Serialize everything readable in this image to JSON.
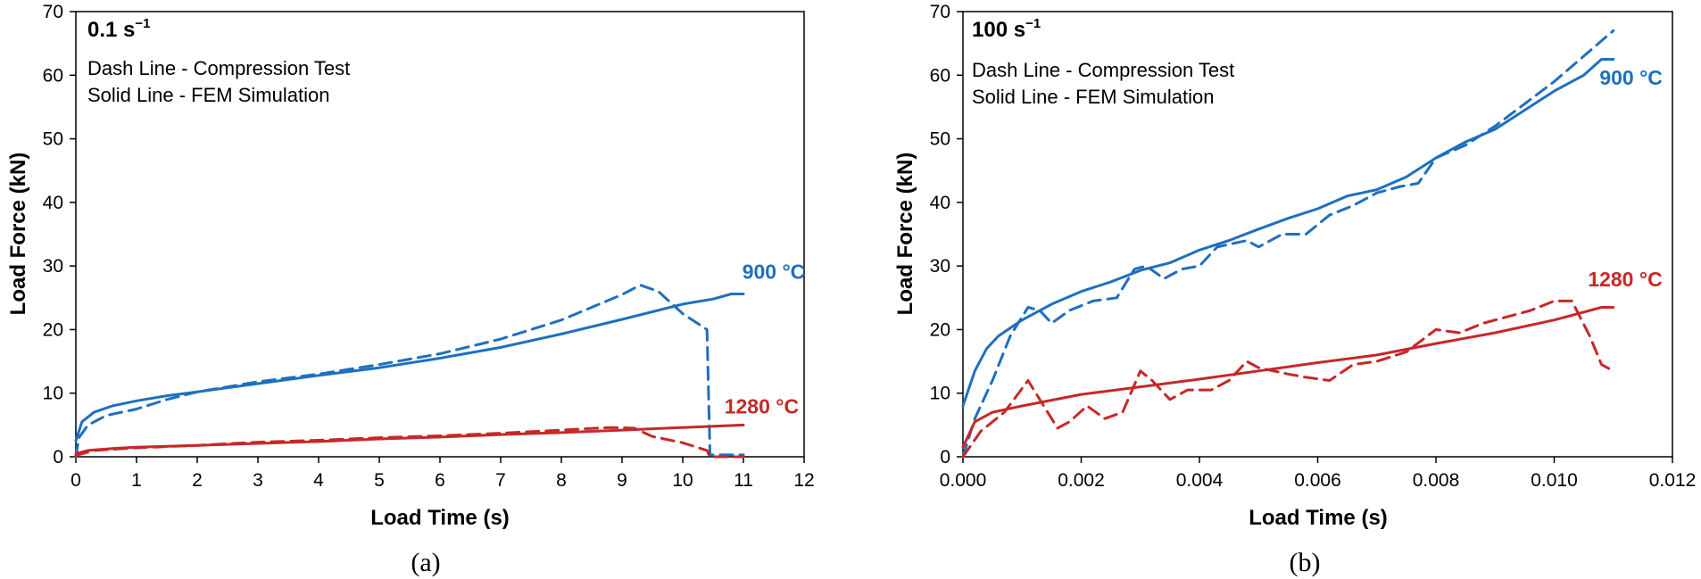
{
  "chart_data": [
    {
      "type": "line",
      "caption": "(a)",
      "title": "0.1 s",
      "title_superscript": "−1",
      "legend_lines": [
        "Dash Line - Compression Test",
        "Solid Line - FEM Simulation"
      ],
      "xlabel": "Load Time (s)",
      "ylabel": "Load Force (kN)",
      "xlim": [
        0,
        12
      ],
      "ylim": [
        0,
        70
      ],
      "xticks": [
        0,
        1,
        2,
        3,
        4,
        5,
        6,
        7,
        8,
        9,
        10,
        11,
        12
      ],
      "xtick_labels": [
        "0",
        "1",
        "2",
        "3",
        "4",
        "5",
        "6",
        "7",
        "8",
        "9",
        "10",
        "11",
        "12"
      ],
      "yticks": [
        0,
        10,
        20,
        30,
        40,
        50,
        60,
        70
      ],
      "ytick_labels": [
        "0",
        "10",
        "20",
        "30",
        "40",
        "50",
        "60",
        "70"
      ],
      "grid": false,
      "series": [
        {
          "name": "900 °C FEM Simulation",
          "temperature": "900 °C",
          "color": "#1f6fbf",
          "style": "solid",
          "points": [
            [
              0,
              2.5
            ],
            [
              0.1,
              5.5
            ],
            [
              0.3,
              7
            ],
            [
              0.6,
              8
            ],
            [
              1,
              8.8
            ],
            [
              1.5,
              9.6
            ],
            [
              2,
              10.2
            ],
            [
              3,
              11.5
            ],
            [
              4,
              12.8
            ],
            [
              5,
              14
            ],
            [
              6,
              15.5
            ],
            [
              7,
              17.2
            ],
            [
              8,
              19.3
            ],
            [
              9,
              21.6
            ],
            [
              10,
              24
            ],
            [
              10.5,
              24.8
            ],
            [
              10.8,
              25.6
            ],
            [
              11,
              25.6
            ]
          ]
        },
        {
          "name": "900 °C Compression Test",
          "temperature": "900 °C",
          "color": "#1f6fbf",
          "style": "dashed",
          "points": [
            [
              0,
              0
            ],
            [
              0.05,
              3
            ],
            [
              0.2,
              5
            ],
            [
              0.5,
              6.5
            ],
            [
              1,
              7.5
            ],
            [
              1.5,
              9
            ],
            [
              2,
              10.2
            ],
            [
              3,
              11.8
            ],
            [
              4,
              13
            ],
            [
              5,
              14.5
            ],
            [
              6,
              16.2
            ],
            [
              7,
              18.5
            ],
            [
              8,
              21.5
            ],
            [
              8.5,
              23.5
            ],
            [
              9,
              25.5
            ],
            [
              9.3,
              27
            ],
            [
              9.6,
              26
            ],
            [
              10,
              22.5
            ],
            [
              10.4,
              20
            ],
            [
              10.45,
              0.3
            ],
            [
              11,
              0.3
            ]
          ]
        },
        {
          "name": "1280 °C FEM Simulation",
          "temperature": "1280 °C",
          "color": "#c62828",
          "style": "solid",
          "points": [
            [
              0,
              0.5
            ],
            [
              0.2,
              1
            ],
            [
              0.6,
              1.3
            ],
            [
              1,
              1.5
            ],
            [
              2,
              1.8
            ],
            [
              3,
              2.1
            ],
            [
              4,
              2.4
            ],
            [
              5,
              2.8
            ],
            [
              6,
              3.1
            ],
            [
              7,
              3.5
            ],
            [
              8,
              3.8
            ],
            [
              9,
              4.2
            ],
            [
              10,
              4.6
            ],
            [
              11,
              5
            ]
          ]
        },
        {
          "name": "1280 °C Compression Test",
          "temperature": "1280 °C",
          "color": "#c62828",
          "style": "dashed",
          "points": [
            [
              0,
              0.2
            ],
            [
              0.3,
              1
            ],
            [
              1,
              1.4
            ],
            [
              2,
              1.8
            ],
            [
              3,
              2.3
            ],
            [
              4,
              2.6
            ],
            [
              5,
              3
            ],
            [
              6,
              3.3
            ],
            [
              7,
              3.7
            ],
            [
              8,
              4.2
            ],
            [
              8.8,
              4.6
            ],
            [
              9.2,
              4.5
            ],
            [
              9.5,
              3.2
            ],
            [
              10,
              2.2
            ],
            [
              10.4,
              1
            ],
            [
              10.45,
              0
            ],
            [
              11,
              0
            ]
          ]
        }
      ],
      "annotations": [
        {
          "text": "900 °C",
          "color": "#1f6fbf",
          "x": 11.5,
          "y": 28
        },
        {
          "text": "1280 °C",
          "color": "#c62828",
          "x": 11.3,
          "y": 6.8
        }
      ]
    },
    {
      "type": "line",
      "caption": "(b)",
      "title": "100 s",
      "title_superscript": "−1",
      "legend_lines": [
        "Dash Line - Compression Test",
        "Solid Line - FEM Simulation"
      ],
      "xlabel": "Load Time (s)",
      "ylabel": "Load Force (kN)",
      "xlim": [
        0,
        0.012
      ],
      "ylim": [
        0,
        70
      ],
      "xticks": [
        0,
        0.002,
        0.004,
        0.006,
        0.008,
        0.01,
        0.012
      ],
      "xtick_labels": [
        "0.000",
        "0.002",
        "0.004",
        "0.006",
        "0.008",
        "0.010",
        "0.012"
      ],
      "yticks": [
        0,
        10,
        20,
        30,
        40,
        50,
        60,
        70
      ],
      "ytick_labels": [
        "0",
        "10",
        "20",
        "30",
        "40",
        "50",
        "60",
        "70"
      ],
      "grid": false,
      "series": [
        {
          "name": "900 °C FEM Simulation",
          "temperature": "900 °C",
          "color": "#1f6fbf",
          "style": "solid",
          "points": [
            [
              0,
              8
            ],
            [
              0.0002,
              13.5
            ],
            [
              0.0004,
              17
            ],
            [
              0.0006,
              19
            ],
            [
              0.001,
              21.5
            ],
            [
              0.0015,
              24
            ],
            [
              0.002,
              26
            ],
            [
              0.0025,
              27.5
            ],
            [
              0.003,
              29.3
            ],
            [
              0.0035,
              30.5
            ],
            [
              0.004,
              32.5
            ],
            [
              0.0045,
              34
            ],
            [
              0.005,
              35.8
            ],
            [
              0.0055,
              37.5
            ],
            [
              0.006,
              39
            ],
            [
              0.0065,
              41
            ],
            [
              0.007,
              42
            ],
            [
              0.0075,
              44
            ],
            [
              0.008,
              47
            ],
            [
              0.0085,
              49.5
            ],
            [
              0.009,
              51.5
            ],
            [
              0.0095,
              54.5
            ],
            [
              0.01,
              57.5
            ],
            [
              0.0105,
              60
            ],
            [
              0.0108,
              62.5
            ],
            [
              0.011,
              62.5
            ]
          ]
        },
        {
          "name": "900 °C Compression Test",
          "temperature": "900 °C",
          "color": "#1f6fbf",
          "style": "dashed",
          "points": [
            [
              0,
              0
            ],
            [
              0.0002,
              6
            ],
            [
              0.0005,
              12
            ],
            [
              0.0008,
              19
            ],
            [
              0.0011,
              23.5
            ],
            [
              0.0013,
              23
            ],
            [
              0.0015,
              21
            ],
            [
              0.0018,
              23
            ],
            [
              0.0022,
              24.5
            ],
            [
              0.0026,
              25
            ],
            [
              0.0029,
              29.5
            ],
            [
              0.0031,
              30
            ],
            [
              0.0034,
              28
            ],
            [
              0.0037,
              29.5
            ],
            [
              0.004,
              30
            ],
            [
              0.0043,
              33
            ],
            [
              0.0048,
              34
            ],
            [
              0.005,
              33
            ],
            [
              0.0054,
              35
            ],
            [
              0.0058,
              35
            ],
            [
              0.0062,
              38
            ],
            [
              0.0066,
              39.5
            ],
            [
              0.007,
              41.5
            ],
            [
              0.0074,
              42.5
            ],
            [
              0.0077,
              43
            ],
            [
              0.008,
              47
            ],
            [
              0.0085,
              49
            ],
            [
              0.009,
              52
            ],
            [
              0.0095,
              55.5
            ],
            [
              0.01,
              59
            ],
            [
              0.0105,
              63
            ],
            [
              0.011,
              67
            ]
          ]
        },
        {
          "name": "1280 °C FEM Simulation",
          "temperature": "1280 °C",
          "color": "#c62828",
          "style": "solid",
          "points": [
            [
              0,
              1.5
            ],
            [
              0.0002,
              5.5
            ],
            [
              0.0005,
              7
            ],
            [
              0.001,
              8
            ],
            [
              0.002,
              9.8
            ],
            [
              0.003,
              11
            ],
            [
              0.004,
              12.2
            ],
            [
              0.005,
              13.5
            ],
            [
              0.006,
              14.8
            ],
            [
              0.007,
              16
            ],
            [
              0.008,
              17.8
            ],
            [
              0.009,
              19.5
            ],
            [
              0.01,
              21.5
            ],
            [
              0.0108,
              23.5
            ],
            [
              0.011,
              23.5
            ]
          ]
        },
        {
          "name": "1280 °C Compression Test",
          "temperature": "1280 °C",
          "color": "#c62828",
          "style": "dashed",
          "points": [
            [
              0,
              0
            ],
            [
              0.0003,
              4
            ],
            [
              0.0007,
              7
            ],
            [
              0.0011,
              12
            ],
            [
              0.0013,
              9
            ],
            [
              0.0016,
              4.5
            ],
            [
              0.0018,
              5.5
            ],
            [
              0.0021,
              8
            ],
            [
              0.0024,
              6
            ],
            [
              0.0027,
              7
            ],
            [
              0.003,
              13.5
            ],
            [
              0.0032,
              12
            ],
            [
              0.0035,
              9
            ],
            [
              0.0038,
              10.5
            ],
            [
              0.0042,
              10.5
            ],
            [
              0.0045,
              12
            ],
            [
              0.0048,
              15
            ],
            [
              0.005,
              14
            ],
            [
              0.0055,
              13
            ],
            [
              0.0058,
              12.5
            ],
            [
              0.0062,
              12
            ],
            [
              0.0066,
              14.5
            ],
            [
              0.007,
              15
            ],
            [
              0.0075,
              16.5
            ],
            [
              0.008,
              20
            ],
            [
              0.0084,
              19.5
            ],
            [
              0.0088,
              21
            ],
            [
              0.0092,
              22
            ],
            [
              0.0096,
              23
            ],
            [
              0.01,
              24.5
            ],
            [
              0.0103,
              24.5
            ],
            [
              0.0106,
              19
            ],
            [
              0.0108,
              14.5
            ],
            [
              0.011,
              13.5
            ]
          ]
        }
      ],
      "annotations": [
        {
          "text": "900 °C",
          "color": "#1f6fbf",
          "x": 0.0113,
          "y": 58.5
        },
        {
          "text": "1280 °C",
          "color": "#c62828",
          "x": 0.0112,
          "y": 26.8
        }
      ]
    }
  ]
}
